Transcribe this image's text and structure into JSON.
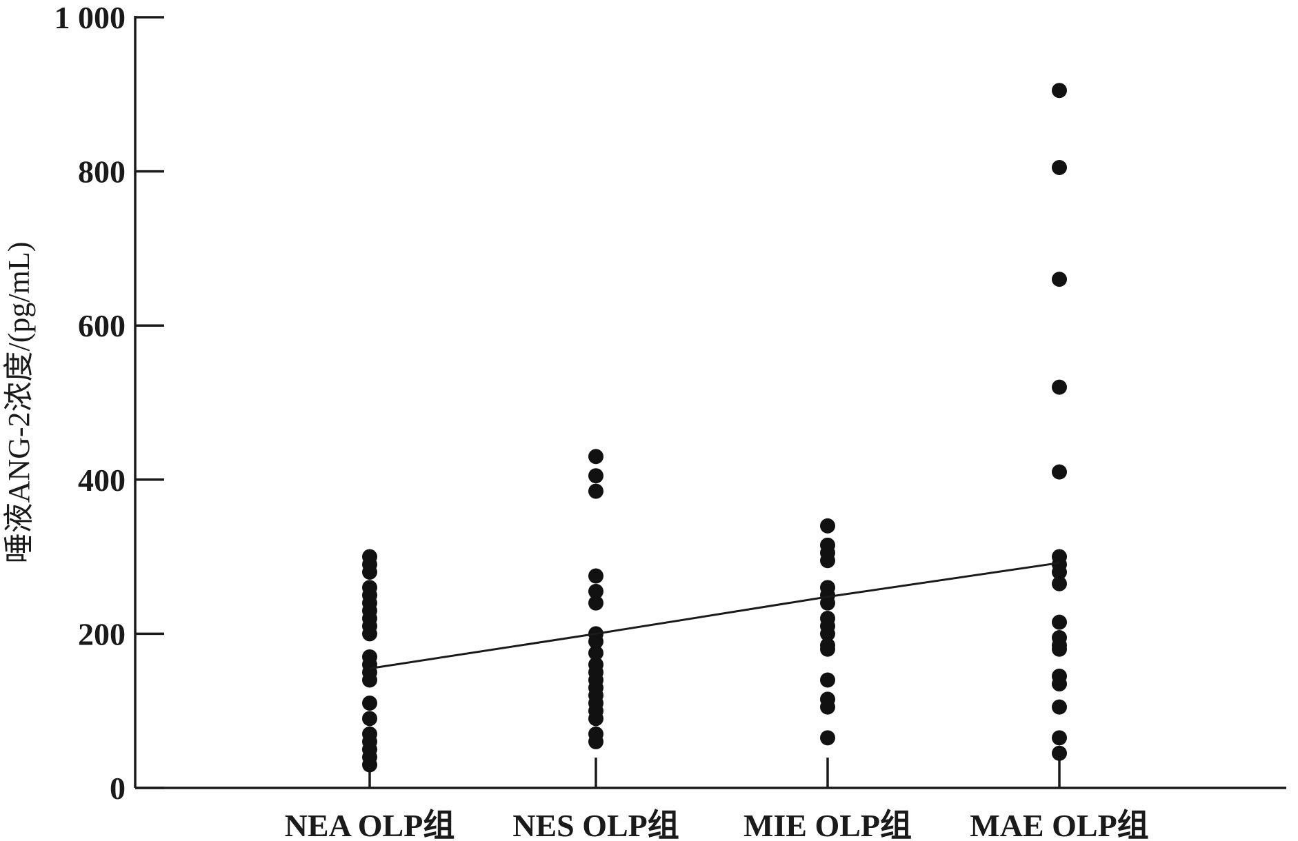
{
  "chart_data": {
    "type": "scatter",
    "ylabel": "唾液ANG-2浓度/(pg/mL)",
    "ylim": [
      0,
      1000
    ],
    "yticks": [
      {
        "value": 0,
        "label": "0"
      },
      {
        "value": 200,
        "label": "200"
      },
      {
        "value": 400,
        "label": "400"
      },
      {
        "value": 600,
        "label": "600"
      },
      {
        "value": 800,
        "label": "800"
      },
      {
        "value": 1000,
        "label": "1 000"
      }
    ],
    "categories": [
      "NEA OLP组",
      "NES OLP组",
      "MIE OLP组",
      "MAE OLP组"
    ],
    "series": [
      {
        "values": [
          [
            300,
            290,
            280,
            260,
            250,
            240,
            230,
            220,
            210,
            200,
            170,
            160,
            150,
            140,
            110,
            90,
            70,
            60,
            50,
            40,
            30
          ],
          [
            430,
            405,
            385,
            275,
            255,
            240,
            200,
            190,
            175,
            160,
            150,
            140,
            130,
            120,
            110,
            100,
            90,
            70,
            60
          ],
          [
            340,
            315,
            305,
            295,
            260,
            250,
            240,
            220,
            210,
            200,
            185,
            180,
            140,
            115,
            105,
            65
          ],
          [
            905,
            805,
            660,
            520,
            410,
            300,
            290,
            280,
            265,
            215,
            195,
            185,
            180,
            145,
            135,
            105,
            65,
            45
          ]
        ]
      }
    ],
    "trend_line": [
      155,
      200,
      248,
      292
    ],
    "grid": false,
    "legend": "none"
  }
}
